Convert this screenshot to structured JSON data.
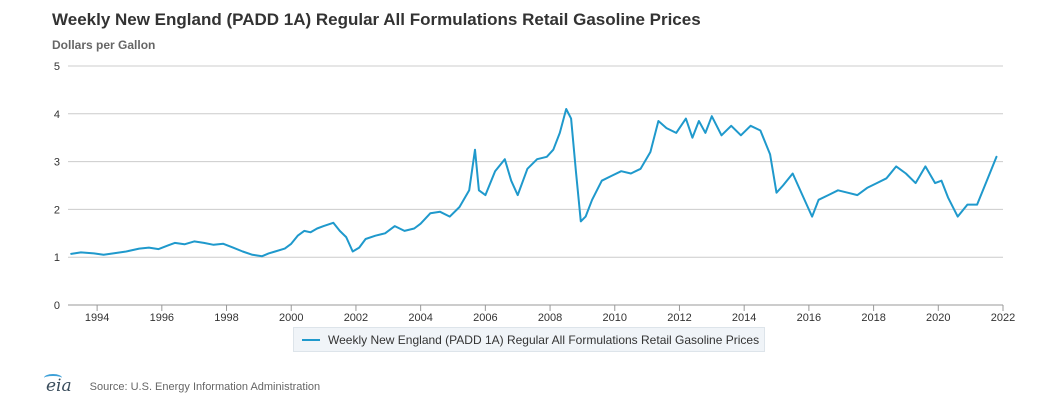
{
  "title": "Weekly New England (PADD 1A) Regular All Formulations Retail Gasoline Prices",
  "subtitle": "Dollars per Gallon",
  "legend_label": "Weekly New England (PADD 1A) Regular All Formulations Retail Gasoline Prices",
  "source": "Source: U.S. Energy Information Administration",
  "logo_text": "eia",
  "colors": {
    "series": "#1f99cc",
    "grid": "#cccccc",
    "axis_text": "#333333"
  },
  "chart_data": {
    "type": "line",
    "title": "Weekly New England (PADD 1A) Regular All Formulations Retail Gasoline Prices",
    "ylabel": "Dollars per Gallon",
    "xlabel": "",
    "xlim": [
      1993.1,
      2022.0
    ],
    "ylim": [
      0,
      5
    ],
    "grid": true,
    "yticks": [
      "0",
      "1",
      "2",
      "3",
      "4",
      "5"
    ],
    "xticks": [
      "1994",
      "1996",
      "1998",
      "2000",
      "2002",
      "2004",
      "2006",
      "2008",
      "2010",
      "2012",
      "2014",
      "2016",
      "2018",
      "2020",
      "2022"
    ],
    "legend": "bottom-center",
    "series": [
      {
        "name": "Weekly New England (PADD 1A) Regular All Formulations Retail Gasoline Prices",
        "x": [
          1993.2,
          1993.5,
          1993.9,
          1994.2,
          1994.5,
          1994.9,
          1995.3,
          1995.6,
          1995.9,
          1996.2,
          1996.4,
          1996.7,
          1997.0,
          1997.3,
          1997.6,
          1997.9,
          1998.2,
          1998.5,
          1998.8,
          1999.1,
          1999.3,
          1999.5,
          1999.8,
          2000.0,
          2000.2,
          2000.4,
          2000.6,
          2000.8,
          2001.0,
          2001.3,
          2001.5,
          2001.7,
          2001.9,
          2002.1,
          2002.3,
          2002.6,
          2002.9,
          2003.2,
          2003.5,
          2003.8,
          2004.0,
          2004.3,
          2004.6,
          2004.9,
          2005.2,
          2005.5,
          2005.68,
          2005.8,
          2006.0,
          2006.3,
          2006.6,
          2006.8,
          2007.0,
          2007.3,
          2007.6,
          2007.9,
          2008.1,
          2008.3,
          2008.5,
          2008.65,
          2008.8,
          2008.95,
          2009.1,
          2009.3,
          2009.6,
          2009.9,
          2010.2,
          2010.5,
          2010.8,
          2011.1,
          2011.35,
          2011.6,
          2011.9,
          2012.2,
          2012.4,
          2012.6,
          2012.8,
          2013.0,
          2013.3,
          2013.6,
          2013.9,
          2014.2,
          2014.5,
          2014.8,
          2015.0,
          2015.2,
          2015.5,
          2015.8,
          2016.1,
          2016.3,
          2016.6,
          2016.9,
          2017.2,
          2017.5,
          2017.8,
          2018.1,
          2018.4,
          2018.7,
          2019.0,
          2019.3,
          2019.6,
          2019.9,
          2020.1,
          2020.3,
          2020.6,
          2020.9,
          2021.2,
          2021.5,
          2021.8
        ],
        "values": [
          1.07,
          1.1,
          1.08,
          1.05,
          1.08,
          1.12,
          1.18,
          1.2,
          1.17,
          1.25,
          1.3,
          1.27,
          1.33,
          1.3,
          1.26,
          1.28,
          1.2,
          1.12,
          1.05,
          1.02,
          1.08,
          1.12,
          1.18,
          1.28,
          1.45,
          1.55,
          1.52,
          1.6,
          1.65,
          1.72,
          1.55,
          1.42,
          1.12,
          1.2,
          1.38,
          1.45,
          1.5,
          1.65,
          1.55,
          1.6,
          1.7,
          1.92,
          1.95,
          1.85,
          2.05,
          2.4,
          3.25,
          2.4,
          2.3,
          2.8,
          3.05,
          2.6,
          2.3,
          2.85,
          3.05,
          3.1,
          3.25,
          3.6,
          4.1,
          3.9,
          2.8,
          1.75,
          1.85,
          2.2,
          2.6,
          2.7,
          2.8,
          2.75,
          2.85,
          3.2,
          3.85,
          3.7,
          3.6,
          3.9,
          3.5,
          3.85,
          3.6,
          3.95,
          3.55,
          3.75,
          3.55,
          3.75,
          3.65,
          3.15,
          2.35,
          2.5,
          2.75,
          2.3,
          1.85,
          2.2,
          2.3,
          2.4,
          2.35,
          2.3,
          2.45,
          2.55,
          2.65,
          2.9,
          2.75,
          2.55,
          2.9,
          2.55,
          2.6,
          2.25,
          1.85,
          2.1,
          2.1,
          2.6,
          3.1
        ]
      }
    ]
  }
}
